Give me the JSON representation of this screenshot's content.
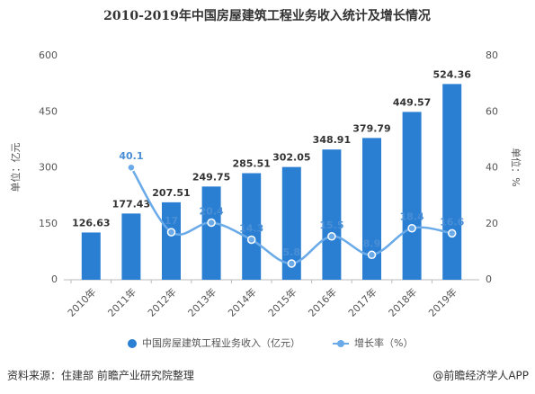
{
  "chart_data": {
    "type": "bar_line",
    "title": "2010-2019年中国房屋建筑工程业务收入统计及增长情况",
    "categories": [
      "2010年",
      "2011年",
      "2012年",
      "2013年",
      "2014年",
      "2015年",
      "2016年",
      "2017年",
      "2018年",
      "2019年"
    ],
    "series": [
      {
        "name": "中国房屋建筑工程业务收入（亿元）",
        "color": "#2b7fd3",
        "values": [
          126.63,
          177.43,
          207.51,
          249.75,
          285.51,
          302.05,
          348.91,
          379.79,
          449.57,
          524.36
        ]
      },
      {
        "name": "增长率（%）",
        "color": "#6aaae8",
        "axis": "y2",
        "values": [
          null,
          40.1,
          17,
          20.4,
          14.3,
          5.8,
          15.5,
          8.9,
          18.4,
          16.6
        ]
      }
    ],
    "ylim": [
      0,
      600
    ],
    "yticks": [
      0,
      150,
      300,
      450,
      600
    ],
    "y2lim": [
      0,
      80
    ],
    "y2ticks": [
      0,
      20,
      40,
      60,
      80
    ],
    "ylabel": "单位：亿元",
    "y2label": "单位：%",
    "source": "资料来源：住建部 前瞻产业研究院整理",
    "credit": "@前瞻经济学人APP"
  }
}
